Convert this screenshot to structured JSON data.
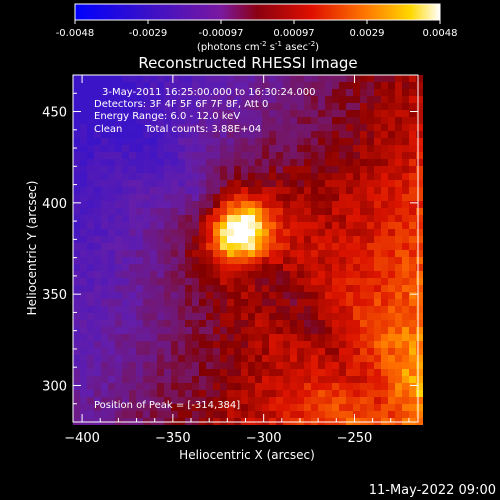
{
  "colorbar": {
    "tick_labels": [
      "-0.0048",
      "-0.0029",
      "-0.00097",
      "0.00097",
      "0.0029",
      "0.0048"
    ],
    "unit_parts": [
      "(photons cm",
      "-2",
      " s",
      "-1",
      " asec",
      "-2",
      ")"
    ]
  },
  "title": "Reconstructed RHESSI Image",
  "annotations": {
    "time": "3-May-2011 16:25:00.000 to 16:30:24.000",
    "detectors": "Detectors: 3F 4F 5F 6F 7F 8F, Att 0",
    "energy": "Energy Range: 6.0 - 12.0 keV",
    "clean": "Clean",
    "counts": "Total counts: 3.88E+04",
    "peak": "Position of Peak = [-314,384]"
  },
  "footer_timestamp": "11-May-2022 09:00",
  "chart_data": {
    "type": "heatmap",
    "title": "Reconstructed RHESSI Image",
    "xlabel": "Heliocentric X (arcsec)",
    "ylabel": "Heliocentric Y (arcsec)",
    "xlim": [
      -405,
      -215
    ],
    "ylim": [
      280,
      470
    ],
    "x_ticks": [
      -400,
      -350,
      -300,
      -250
    ],
    "y_ticks": [
      300,
      350,
      400,
      450
    ],
    "colorbar_range": [
      -0.0048,
      0.0048
    ],
    "colormap": "blue-purple-red-yellow-white",
    "peak": {
      "x": -314,
      "y": 384,
      "value": 0.0048
    },
    "colors": {
      "stops": [
        "#0000ff",
        "#4b0082",
        "#8a2be2",
        "#8b0000",
        "#ff2000",
        "#ff8000",
        "#ffd800",
        "#ffffff"
      ]
    }
  }
}
